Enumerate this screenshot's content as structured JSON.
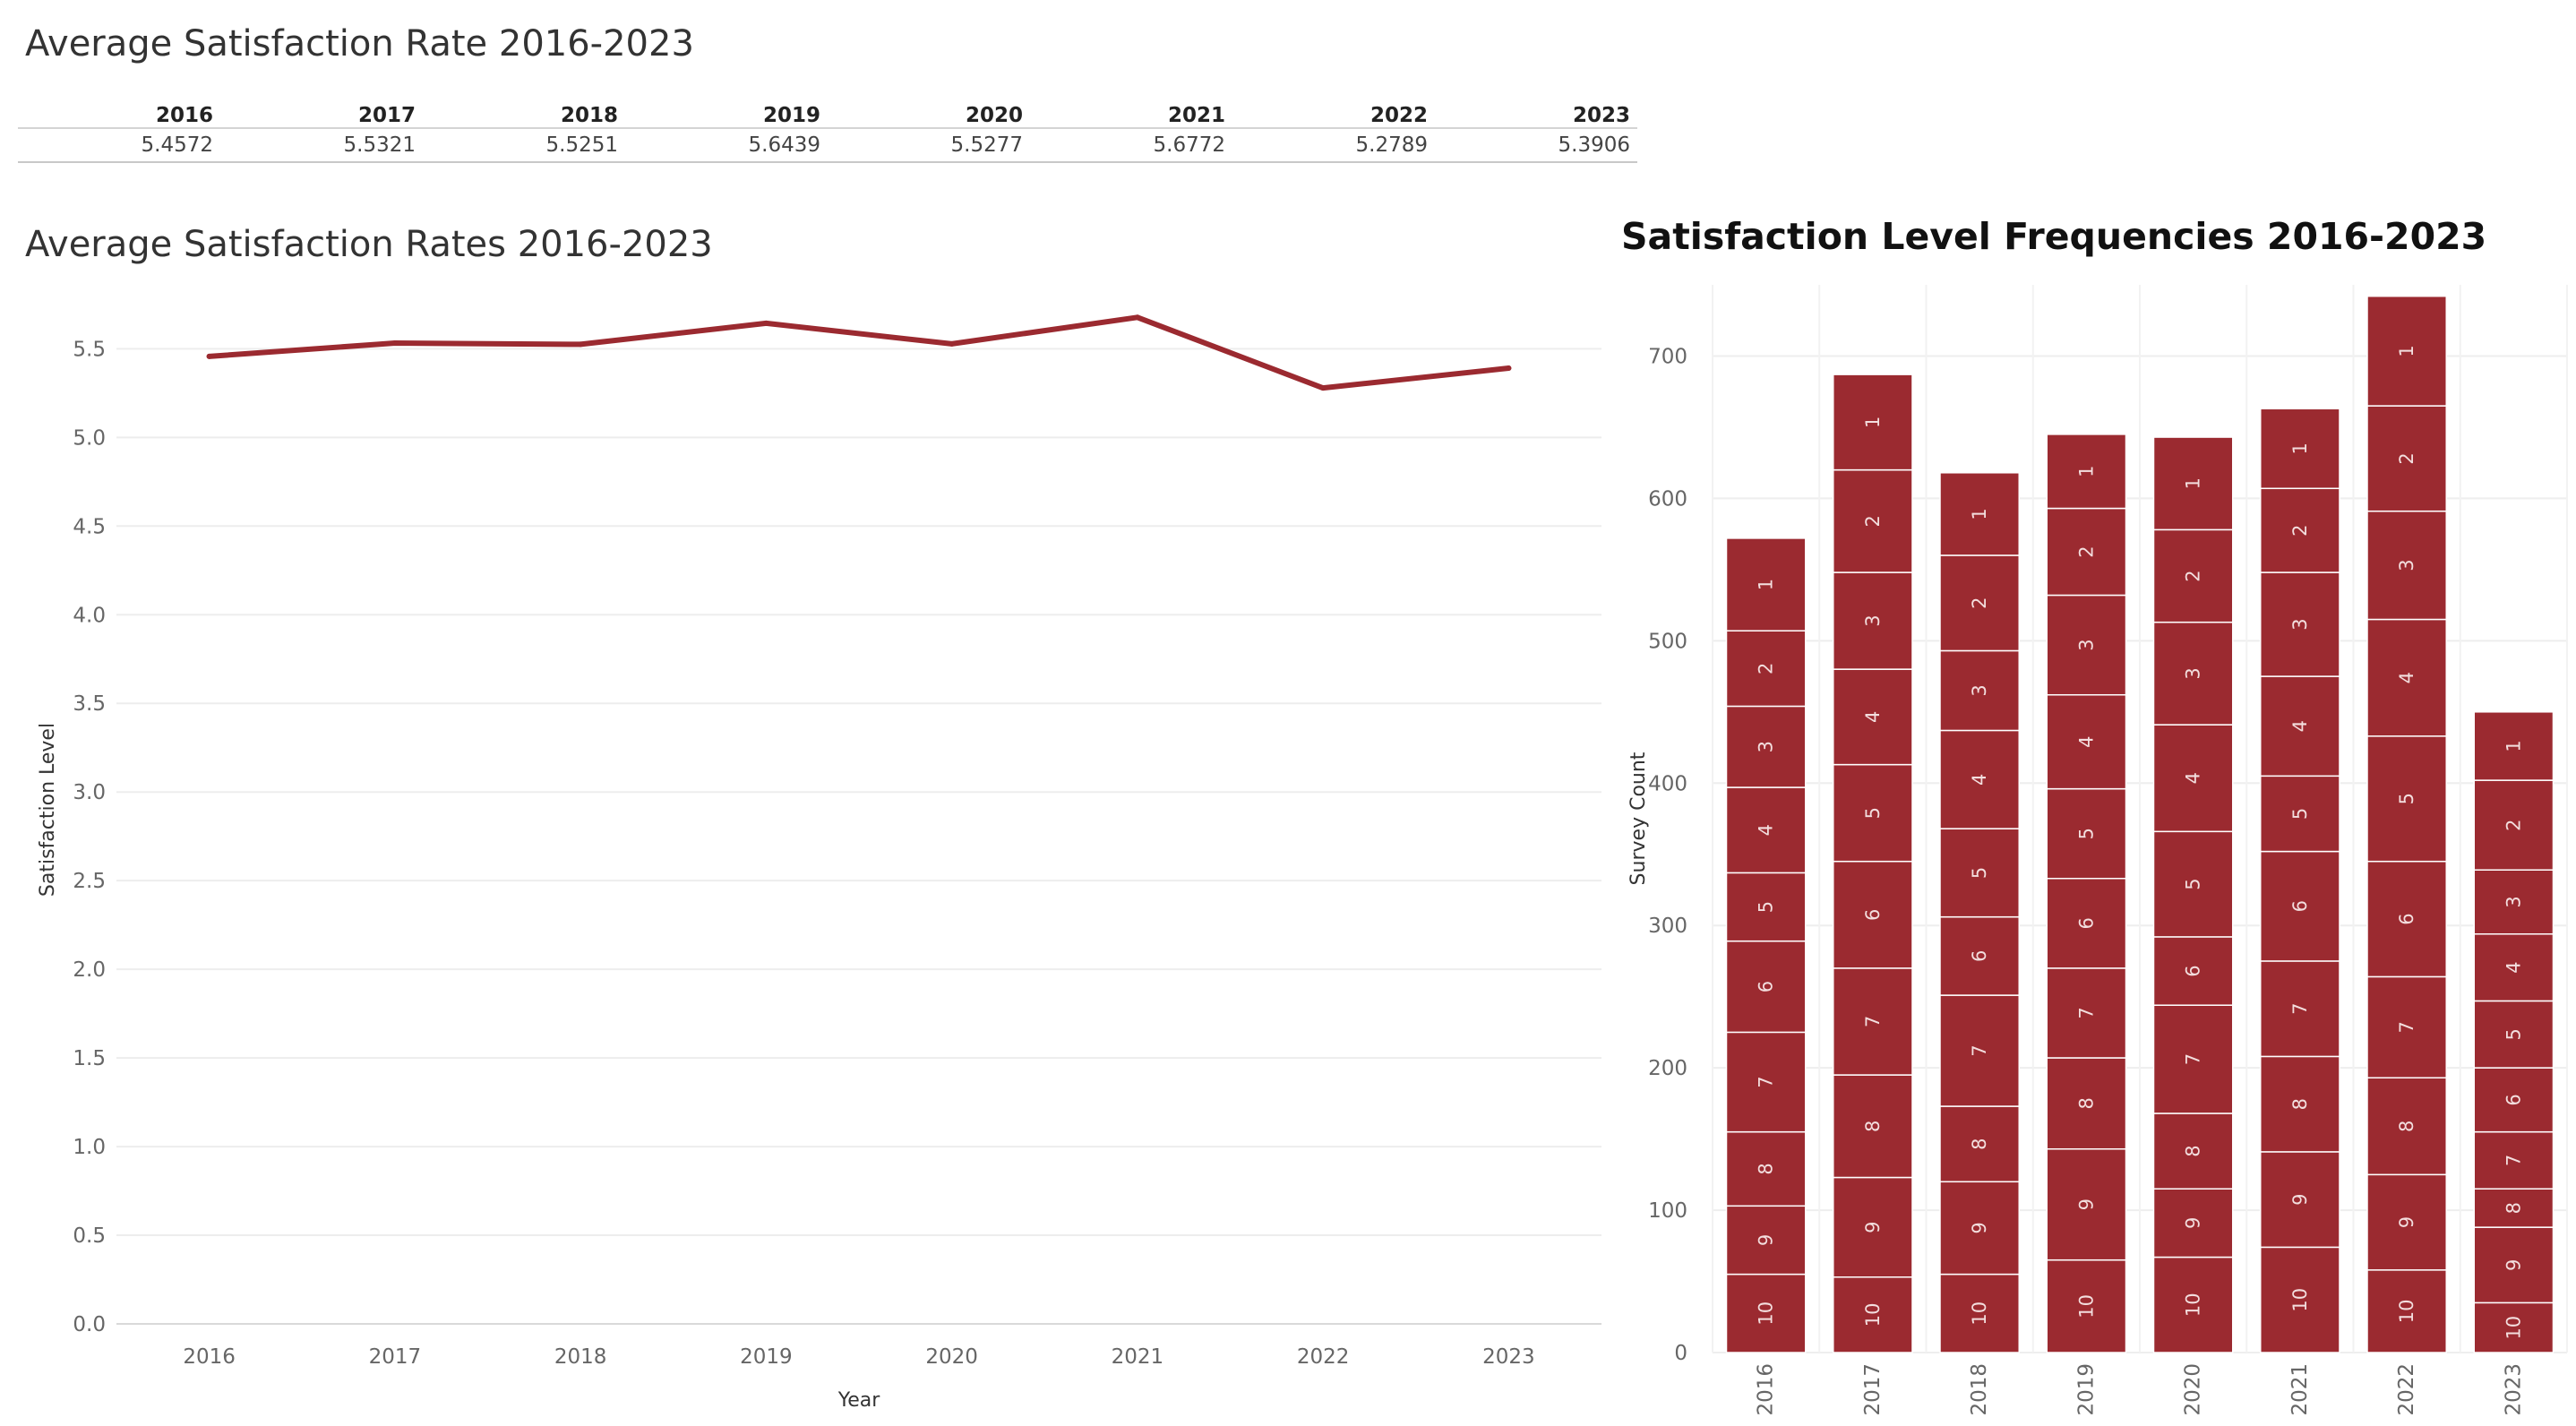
{
  "table": {
    "title": "Average Satisfaction Rate 2016-2023",
    "years": [
      "2016",
      "2017",
      "2018",
      "2019",
      "2020",
      "2021",
      "2022",
      "2023"
    ],
    "values": [
      "5.4572",
      "5.5321",
      "5.5251",
      "5.6439",
      "5.5277",
      "5.6772",
      "5.2789",
      "5.3906"
    ]
  },
  "chart_data": [
    {
      "type": "line",
      "title": "Average Satisfaction Rates 2016-2023",
      "xlabel": "Year",
      "ylabel": "Satisfaction Level",
      "x": [
        "2016",
        "2017",
        "2018",
        "2019",
        "2020",
        "2021",
        "2022",
        "2023"
      ],
      "series": [
        {
          "values": [
            5.4572,
            5.5321,
            5.5251,
            5.6439,
            5.5277,
            5.6772,
            5.2789,
            5.3906
          ]
        }
      ],
      "ylim": [
        0,
        5.8
      ],
      "yticks": [
        "0.0",
        "0.5",
        "1.0",
        "1.5",
        "2.0",
        "2.5",
        "3.0",
        "3.5",
        "4.0",
        "4.5",
        "5.0",
        "5.5"
      ],
      "grid": true,
      "color": "#9b2a30"
    },
    {
      "type": "bar",
      "stacked": true,
      "title": "Satisfaction Level Frequencies 2016-2023",
      "ylabel": "Survey Count",
      "categories": [
        "2016",
        "2017",
        "2018",
        "2019",
        "2020",
        "2021",
        "2022",
        "2023"
      ],
      "segment_labels": [
        "10",
        "9",
        "8",
        "7",
        "6",
        "5",
        "4",
        "3",
        "2",
        "1"
      ],
      "segments": [
        [
          55,
          48,
          52,
          70,
          64,
          48,
          60,
          57,
          53,
          65
        ],
        [
          53,
          70,
          72,
          75,
          75,
          68,
          67,
          68,
          72,
          67
        ],
        [
          55,
          65,
          53,
          78,
          55,
          62,
          69,
          56,
          67,
          58
        ],
        [
          65,
          78,
          64,
          63,
          63,
          63,
          66,
          70,
          61,
          52
        ],
        [
          67,
          48,
          53,
          76,
          48,
          74,
          75,
          72,
          65,
          65
        ],
        [
          74,
          67,
          67,
          67,
          77,
          53,
          70,
          73,
          59,
          56
        ],
        [
          58,
          67,
          68,
          71,
          81,
          88,
          82,
          76,
          74,
          77
        ],
        [
          35,
          53,
          27,
          40,
          45,
          47,
          47,
          45,
          63,
          48
        ]
      ],
      "ylim": [
        0,
        750
      ],
      "yticks": [
        "0",
        "100",
        "200",
        "300",
        "400",
        "500",
        "600",
        "700"
      ],
      "grid": true,
      "color": "#9b2a30"
    }
  ]
}
